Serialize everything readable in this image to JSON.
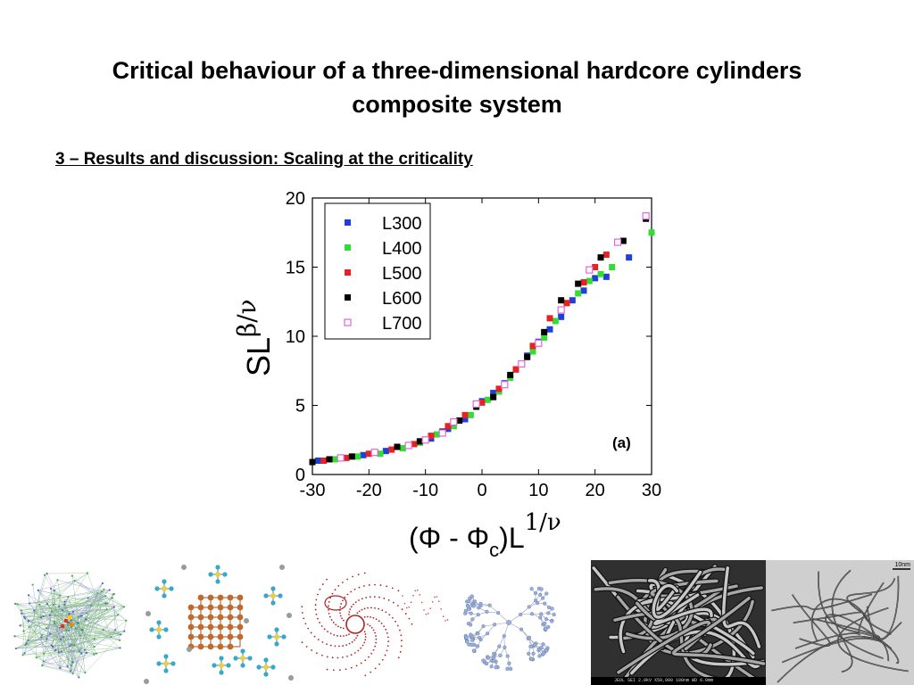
{
  "slide": {
    "title_line1": "Critical behaviour of a three-dimensional hardcore cylinders",
    "title_line2": "composite system",
    "section_heading": "3 – Results and discussion: Scaling at the criticality"
  },
  "chart_data": {
    "type": "scatter",
    "xlabel_main": "(Φ - Φ",
    "xlabel_sub": "c",
    "xlabel_tail": ")L",
    "xlabel_sup": "1/ν",
    "ylabel_main": "SL",
    "ylabel_sup": "β/ν",
    "annotation": "(a)",
    "xlim": [
      -30,
      30
    ],
    "ylim": [
      0,
      20
    ],
    "xticks": [
      -30,
      -20,
      -10,
      0,
      10,
      20,
      30
    ],
    "yticks": [
      0,
      5,
      10,
      15,
      20
    ],
    "legend_placement": "top-left",
    "grid": false,
    "series": [
      {
        "name": "L300",
        "color": "#1f3fd9",
        "marker": "filled-square",
        "x": [
          -29,
          -25,
          -21,
          -17,
          -13,
          -9,
          -6,
          -3,
          0,
          2,
          4,
          6,
          8,
          10,
          12,
          14,
          16,
          18,
          20,
          22,
          26
        ],
        "y": [
          1.0,
          1.2,
          1.4,
          1.7,
          2.1,
          2.6,
          3.3,
          4.0,
          5.3,
          5.9,
          6.6,
          7.6,
          8.6,
          9.6,
          10.5,
          11.4,
          12.6,
          13.3,
          14.2,
          14.3,
          15.7
        ]
      },
      {
        "name": "L400",
        "color": "#33dd33",
        "marker": "filled-square",
        "x": [
          -26,
          -22,
          -18,
          -14,
          -11,
          -8,
          -5,
          -2,
          1,
          3,
          5,
          7,
          9,
          11,
          13,
          15,
          17,
          19,
          21,
          23,
          30
        ],
        "y": [
          1.1,
          1.3,
          1.5,
          1.9,
          2.3,
          2.9,
          3.5,
          4.3,
          5.4,
          6.0,
          7.0,
          8.0,
          8.9,
          9.9,
          11.1,
          12.4,
          13.1,
          14.0,
          14.5,
          15.0,
          17.5
        ]
      },
      {
        "name": "L500",
        "color": "#e82222",
        "marker": "filled-square",
        "x": [
          -28,
          -24,
          -20,
          -16,
          -12,
          -9,
          -6,
          -3,
          0,
          3,
          6,
          9,
          12,
          15,
          18,
          20,
          22
        ],
        "y": [
          1.0,
          1.2,
          1.5,
          1.8,
          2.2,
          2.8,
          3.5,
          4.3,
          5.2,
          6.2,
          7.6,
          9.3,
          11.3,
          12.4,
          13.9,
          15.0,
          15.9
        ]
      },
      {
        "name": "L600",
        "color": "#000000",
        "marker": "filled-square",
        "x": [
          -30,
          -27,
          -23,
          -19,
          -15,
          -11,
          -7,
          -4,
          -1,
          2,
          5,
          8,
          11,
          14,
          17,
          21,
          25,
          29
        ],
        "y": [
          0.9,
          1.1,
          1.3,
          1.6,
          2.0,
          2.4,
          3.1,
          3.9,
          4.9,
          5.6,
          7.2,
          8.5,
          10.3,
          12.6,
          13.8,
          15.7,
          16.9,
          18.5
        ]
      },
      {
        "name": "L700",
        "color": "#dd66dd",
        "marker": "open-square",
        "x": [
          -25,
          -19,
          -13,
          -10,
          -7,
          -5,
          -1,
          4,
          7,
          10,
          14,
          19,
          24,
          29
        ],
        "y": [
          1.2,
          1.6,
          2.1,
          2.5,
          3.0,
          3.8,
          5.1,
          6.5,
          8.0,
          9.5,
          11.9,
          14.8,
          16.8,
          18.7
        ]
      }
    ]
  },
  "figures": [
    {
      "label": "dense-network-graph"
    },
    {
      "label": "lattice-cluster-graph"
    },
    {
      "label": "red-spiral-network"
    },
    {
      "label": "tree-network-graph"
    },
    {
      "label": "sem-micrograph-nanotubes",
      "scalebar_text": "JEOL   SEI   2.0kV   X50,000   100nm   WD 6.0mm"
    },
    {
      "label": "tem-micrograph-nanotubes",
      "scalebar_text": "10nm"
    }
  ]
}
